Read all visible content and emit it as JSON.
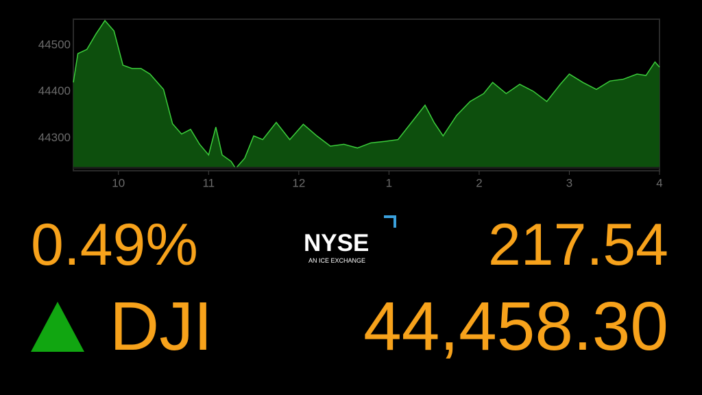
{
  "chart_data": {
    "type": "area",
    "x": [
      9.5,
      9.55,
      9.65,
      9.75,
      9.85,
      9.95,
      10.05,
      10.15,
      10.25,
      10.35,
      10.5,
      10.6,
      10.7,
      10.8,
      10.9,
      11.0,
      11.08,
      11.15,
      11.25,
      11.3,
      11.4,
      11.5,
      11.6,
      11.75,
      11.9,
      12.05,
      12.2,
      12.35,
      12.5,
      12.65,
      12.8,
      12.95,
      13.1,
      13.25,
      13.4,
      13.5,
      13.6,
      13.75,
      13.9,
      14.05,
      14.15,
      14.3,
      14.45,
      14.6,
      14.75,
      14.9,
      15.0,
      15.15,
      15.3,
      15.45,
      15.6,
      15.75,
      15.85,
      15.95,
      16.0
    ],
    "series": [
      {
        "color": "#3ccf3c",
        "fill": "#0d4f0d",
        "values": [
          44420,
          44482,
          44491,
          44524,
          44553,
          44531,
          44457,
          44450,
          44450,
          44438,
          44405,
          44331,
          44309,
          44319,
          44287,
          44264,
          44324,
          44264,
          44250,
          44235,
          44257,
          44305,
          44297,
          44334,
          44297,
          44330,
          44305,
          44283,
          44287,
          44279,
          44290,
          44293,
          44297,
          44334,
          44371,
          44334,
          44305,
          44349,
          44379,
          44396,
          44420,
          44396,
          44416,
          44401,
          44379,
          44416,
          44438,
          44420,
          44405,
          44423,
          44427,
          44438,
          44435,
          44464,
          44453
        ]
      }
    ],
    "xlim": [
      9.5,
      16
    ],
    "xticks": [
      {
        "value": 10,
        "label": "10"
      },
      {
        "value": 11,
        "label": "11"
      },
      {
        "value": 12,
        "label": "12"
      },
      {
        "value": 13,
        "label": "1"
      },
      {
        "value": 14,
        "label": "2"
      },
      {
        "value": 15,
        "label": "3"
      },
      {
        "value": 16,
        "label": "4"
      }
    ],
    "ylim": [
      44230,
      44556
    ],
    "yticks": [
      44300,
      44400,
      44500
    ]
  },
  "ticker": {
    "change_percent": "0.49%",
    "symbol": "DJI",
    "change": "217.54",
    "price": "44,458.30"
  },
  "logo": {
    "name": "NYSE",
    "tagline": "AN ICE EXCHANGE"
  }
}
